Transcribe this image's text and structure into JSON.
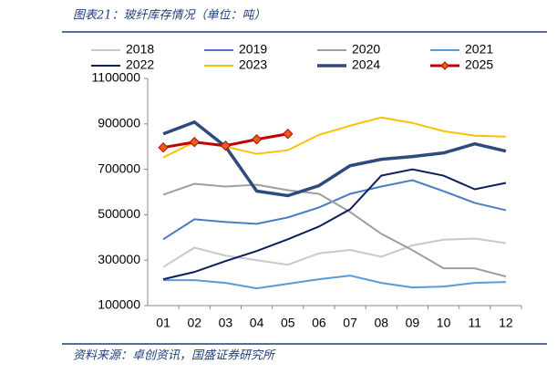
{
  "title": "图表21：玻纤库存情况（单位：吨）",
  "source": "资料来源：卓创资讯，国盛证券研究所",
  "chart_data": {
    "type": "line",
    "categories": [
      "01",
      "02",
      "03",
      "04",
      "05",
      "06",
      "07",
      "08",
      "09",
      "10",
      "11",
      "12"
    ],
    "ylim": [
      100000,
      1100000
    ],
    "yticks": [
      100000,
      300000,
      500000,
      700000,
      900000,
      1100000
    ],
    "series": [
      {
        "name": "2018",
        "color": "#c9c9c9",
        "values": [
          270000,
          355000,
          320000,
          300000,
          280000,
          330000,
          345000,
          315000,
          365000,
          390000,
          395000,
          375000
        ]
      },
      {
        "name": "2019",
        "color": "#4a7cc4",
        "values": [
          392000,
          480000,
          468000,
          460000,
          488000,
          532000,
          592000,
          624000,
          652000,
          604000,
          552000,
          520000
        ]
      },
      {
        "name": "2020",
        "color": "#9e9e9e",
        "values": [
          588000,
          636000,
          624000,
          632000,
          608000,
          592000,
          512000,
          416000,
          344000,
          264000,
          264000,
          228000
        ]
      },
      {
        "name": "2021",
        "color": "#5b9bd5",
        "values": [
          212000,
          212000,
          200000,
          176000,
          196000,
          216000,
          232000,
          200000,
          180000,
          184000,
          200000,
          204000
        ]
      },
      {
        "name": "2022",
        "color": "#0f1f5c",
        "values": [
          216000,
          248000,
          296000,
          340000,
          392000,
          448000,
          524000,
          672000,
          700000,
          672000,
          612000,
          640000
        ]
      },
      {
        "name": "2023",
        "color": "#ffc000",
        "values": [
          752000,
          820000,
          800000,
          768000,
          784000,
          852000,
          892000,
          928000,
          904000,
          868000,
          848000,
          844000
        ]
      },
      {
        "name": "2024",
        "color": "#2e4a7d",
        "values": [
          856000,
          908000,
          800000,
          604000,
          584000,
          628000,
          716000,
          744000,
          756000,
          772000,
          812000,
          780000
        ]
      },
      {
        "name": "2025",
        "color": "#c00000",
        "values": [
          796000,
          820000,
          804000,
          832000,
          856000,
          null,
          null,
          null,
          null,
          null,
          null,
          null
        ]
      }
    ]
  }
}
